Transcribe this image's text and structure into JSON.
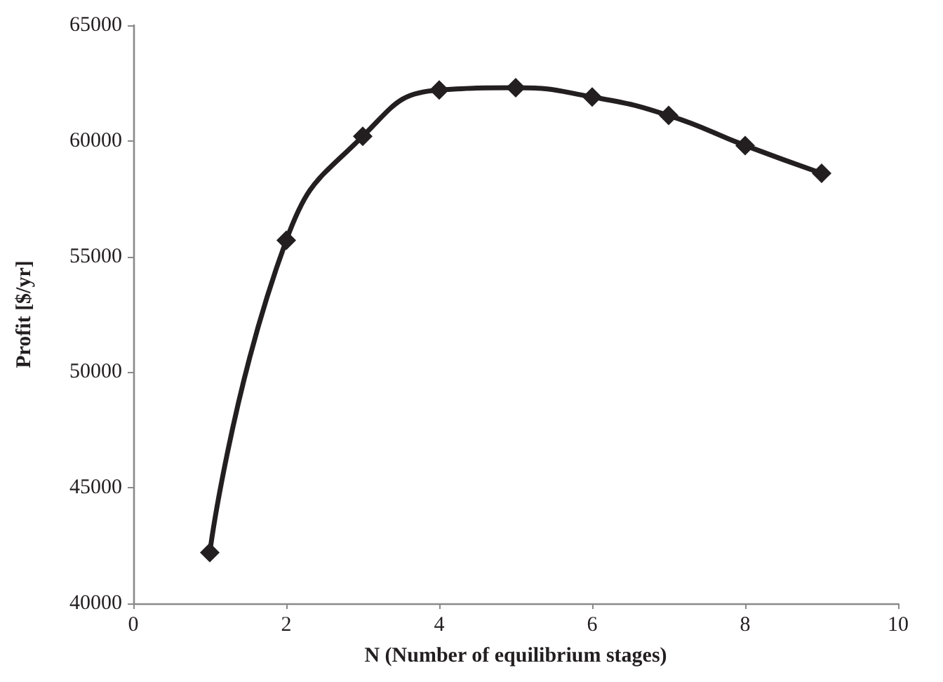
{
  "chart_data": {
    "type": "line",
    "xlabel": "N (Number of equilibrium stages)",
    "ylabel": "Profit [$/yr]",
    "x": [
      1,
      2,
      3,
      4,
      5,
      6,
      7,
      8,
      9
    ],
    "series": [
      {
        "color": "#231f20",
        "values": [
          42200,
          55700,
          60200,
          62200,
          62300,
          61900,
          61100,
          59800,
          58600
        ]
      }
    ],
    "xlim": [
      0,
      10
    ],
    "xticks": [
      0,
      2,
      4,
      6,
      8,
      10
    ],
    "ylim": [
      40000,
      65000
    ],
    "yticks": [
      40000,
      45000,
      50000,
      55000,
      60000,
      65000
    ],
    "grid": false,
    "marker": "diamond",
    "line_style": "solid"
  }
}
